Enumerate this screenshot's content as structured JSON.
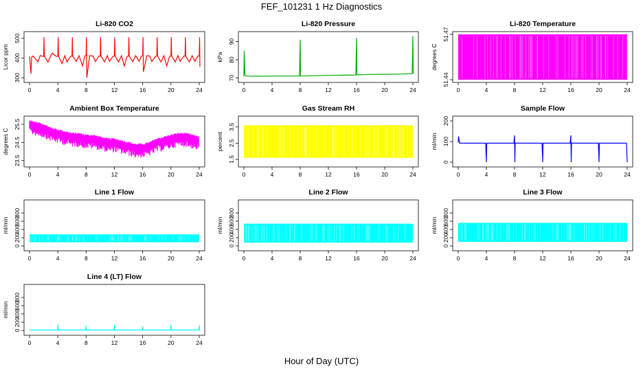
{
  "title": "FEF_101231  1 Hz Diagnostics",
  "x_axis_label": "Hour of Day (UTC)",
  "chart_data": [
    {
      "type": "line",
      "title": "Li-820 CO2",
      "ylabel": "Licor ppm",
      "color": "#ff0000",
      "xlim": [
        0,
        24
      ],
      "ylim": [
        290,
        520
      ],
      "xticks": [
        0,
        4,
        8,
        12,
        16,
        20,
        24
      ],
      "yticks": [
        300,
        400,
        500
      ],
      "series": [
        {
          "x": [
            0,
            0.2,
            0.3,
            0.5,
            1.2,
            1.5,
            2,
            2.05,
            2.1,
            2.6,
            3,
            3.2,
            3.8,
            4,
            4.05,
            4.1,
            4.6,
            5,
            5.3,
            5.8,
            6,
            6.05,
            6.1,
            6.6,
            7,
            7.5,
            7.8,
            8,
            8.05,
            8.1,
            8.5,
            9,
            9.3,
            9.8,
            10,
            10.05,
            10.1,
            10.6,
            11,
            11.3,
            11.8,
            12,
            12.05,
            12.1,
            12.6,
            13,
            13.4,
            13.8,
            14,
            14.05,
            14.1,
            14.6,
            15,
            15.5,
            15.8,
            16,
            16.05,
            16.1,
            16.6,
            17,
            17.3,
            17.8,
            18,
            18.05,
            18.1,
            18.6,
            19,
            19.4,
            19.8,
            20,
            20.05,
            20.1,
            20.6,
            21,
            21.3,
            21.8,
            22,
            22.05,
            22.1,
            22.6,
            23,
            23.4,
            23.8,
            24,
            24.05,
            24.1
          ],
          "y": [
            408,
            320,
            405,
            410,
            380,
            412,
            408,
            505,
            410,
            380,
            412,
            425,
            408,
            410,
            505,
            410,
            372,
            412,
            380,
            408,
            410,
            505,
            410,
            383,
            412,
            360,
            410,
            412,
            505,
            300,
            412,
            410,
            382,
            410,
            410,
            505,
            410,
            380,
            412,
            383,
            408,
            410,
            505,
            410,
            380,
            412,
            360,
            408,
            410,
            505,
            410,
            382,
            412,
            383,
            410,
            412,
            505,
            330,
            412,
            410,
            382,
            408,
            410,
            505,
            410,
            380,
            412,
            360,
            408,
            410,
            505,
            410,
            380,
            412,
            383,
            410,
            410,
            505,
            410,
            380,
            412,
            383,
            410,
            410,
            505,
            355
          ]
        }
      ]
    },
    {
      "type": "line",
      "title": "Li-820 Pressure",
      "ylabel": "kPa",
      "color": "#00aa00",
      "xlim": [
        0,
        24
      ],
      "ylim": [
        69,
        94
      ],
      "xticks": [
        0,
        4,
        8,
        12,
        16,
        20,
        24
      ],
      "yticks": [
        70,
        80,
        90
      ],
      "series": [
        {
          "x": [
            0,
            0.05,
            0.15,
            0.3,
            2,
            4,
            6,
            7.9,
            8,
            8.05,
            8.1,
            10,
            12,
            14,
            15.9,
            16,
            16.05,
            16.1,
            18,
            20,
            22,
            23.9,
            24,
            24.05
          ],
          "y": [
            71,
            85,
            71.5,
            71,
            70.9,
            71,
            71,
            71,
            91,
            71,
            71,
            71.2,
            71.4,
            71.5,
            71.6,
            92,
            71.7,
            71.7,
            71.9,
            72,
            72.1,
            72.3,
            93,
            72.3
          ]
        }
      ]
    },
    {
      "type": "area",
      "title": "Li-820 Temperature",
      "ylabel": "degrees C",
      "color": "#ff00ff",
      "xlim": [
        0,
        24
      ],
      "ylim": [
        51.44,
        51.47
      ],
      "xticks": [
        0,
        4,
        8,
        12,
        16,
        20,
        24
      ],
      "yticks": [
        51.44,
        51.47
      ],
      "series": [
        {
          "x": [
            0,
            24
          ],
          "y": [
            51.47,
            51.47
          ]
        }
      ]
    },
    {
      "type": "line",
      "title": "Ambient Box Temperature",
      "ylabel": "degrees C",
      "color": "#ff00ff",
      "xlim": [
        0,
        24
      ],
      "ylim": [
        23.3,
        25.8
      ],
      "xticks": [
        0,
        4,
        8,
        12,
        16,
        20,
        24
      ],
      "yticks": [
        23.5,
        24.5,
        25.5
      ],
      "series": [
        {
          "x": [
            0,
            1,
            2,
            3,
            4,
            5,
            6,
            7,
            8,
            9,
            10,
            11,
            12,
            13,
            14,
            15,
            16,
            17,
            18,
            19,
            20,
            21,
            22,
            23,
            24
          ],
          "y": [
            25.5,
            25.4,
            25.3,
            25.1,
            25.0,
            24.9,
            24.8,
            24.8,
            24.7,
            24.7,
            24.6,
            24.5,
            24.5,
            24.4,
            24.3,
            24.2,
            24.2,
            24.3,
            24.5,
            24.6,
            24.7,
            24.8,
            24.8,
            24.7,
            24.6
          ]
        }
      ]
    },
    {
      "type": "area",
      "title": "Gas Stream RH",
      "ylabel": "percent",
      "color": "#ffff00",
      "xlim": [
        0,
        24
      ],
      "ylim": [
        1.2,
        4.0
      ],
      "xticks": [
        0,
        4,
        8,
        12,
        16,
        20,
        24
      ],
      "yticks": [
        1.5,
        2.5,
        3.5
      ],
      "series": [
        {
          "x": [
            0,
            4,
            8,
            12,
            16,
            20,
            24
          ],
          "y": [
            3.6,
            3.6,
            3.7,
            3.7,
            3.7,
            3.6,
            3.6
          ]
        }
      ]
    },
    {
      "type": "line",
      "title": "Sample Flow",
      "ylabel": "ml/min",
      "color": "#0000ff",
      "xlim": [
        0,
        24
      ],
      "ylim": [
        -10,
        210
      ],
      "xticks": [
        0,
        4,
        8,
        12,
        16,
        20,
        24
      ],
      "yticks": [
        0,
        100,
        200
      ],
      "series": [
        {
          "x": [
            0,
            0.05,
            0.2,
            3.9,
            4,
            4.05,
            4.1,
            7.9,
            8,
            8.05,
            8.1,
            11.9,
            12,
            12.05,
            12.1,
            15.9,
            16,
            16.05,
            16.1,
            19.9,
            20,
            20.05,
            20.1,
            23.9,
            24
          ],
          "y": [
            95,
            125,
            92,
            92,
            0,
            92,
            92,
            92,
            130,
            0,
            92,
            92,
            0,
            92,
            92,
            92,
            130,
            0,
            92,
            92,
            0,
            92,
            92,
            92,
            0
          ]
        }
      ]
    },
    {
      "type": "area",
      "title": "Line 1 Flow",
      "ylabel": "ml/min",
      "color": "#00ffff",
      "xlim": [
        0,
        24
      ],
      "ylim": [
        -50,
        1050
      ],
      "xticks": [
        0,
        4,
        8,
        12,
        16,
        20,
        24
      ],
      "yticks": [
        0,
        200,
        400,
        600,
        800
      ],
      "series": [
        {
          "x": [
            0,
            24
          ],
          "y": [
            280,
            280
          ]
        }
      ]
    },
    {
      "type": "area",
      "title": "Line 2 Flow",
      "ylabel": "ml/min",
      "color": "#00ffff",
      "xlim": [
        0,
        24
      ],
      "ylim": [
        -50,
        1050
      ],
      "xticks": [
        0,
        4,
        8,
        12,
        16,
        20,
        24
      ],
      "yticks": [
        0,
        200,
        400,
        600,
        800
      ],
      "series": [
        {
          "x": [
            0,
            24
          ],
          "y": [
            540,
            540
          ]
        }
      ]
    },
    {
      "type": "area",
      "title": "Line 3 Flow",
      "ylabel": "ml/min",
      "color": "#00ffff",
      "xlim": [
        0,
        24
      ],
      "ylim": [
        -50,
        1050
      ],
      "xticks": [
        0,
        4,
        8,
        12,
        16,
        20,
        24
      ],
      "yticks": [
        0,
        200,
        400,
        600,
        800
      ],
      "series": [
        {
          "x": [
            0,
            24
          ],
          "y": [
            560,
            560
          ]
        }
      ]
    },
    {
      "type": "line",
      "title": "Line 4 (LT) Flow",
      "ylabel": "ml/min",
      "color": "#00ffff",
      "xlim": [
        0,
        24
      ],
      "ylim": [
        -50,
        1050
      ],
      "xticks": [
        0,
        4,
        8,
        12,
        16,
        20,
        24
      ],
      "yticks": [
        0,
        200,
        400,
        600,
        800
      ],
      "series": [
        {
          "x": [
            0,
            3.95,
            4,
            4.05,
            7.95,
            8,
            8.05,
            11.95,
            12,
            12.05,
            15.95,
            16,
            16.05,
            19.95,
            20,
            20.05,
            23.95,
            24,
            24.05
          ],
          "y": [
            10,
            10,
            150,
            10,
            10,
            110,
            10,
            10,
            130,
            10,
            10,
            100,
            10,
            10,
            140,
            10,
            10,
            120,
            10
          ]
        }
      ]
    }
  ]
}
